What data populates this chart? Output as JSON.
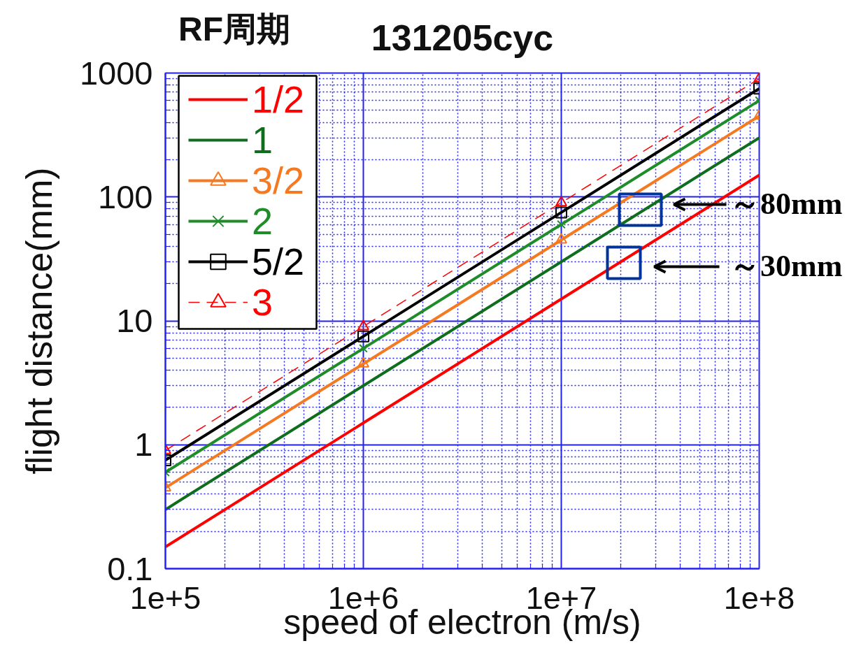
{
  "chart_data": {
    "type": "line",
    "title": "131205cyc",
    "xlabel": "speed of electron (m/s)",
    "ylabel": "flight distance(mm)",
    "legend_title": "RF周期",
    "log": "xy",
    "grid": true,
    "legend": "top left",
    "x": [
      100000,
      1000000,
      10000000,
      100000000
    ],
    "xlim": [
      100000,
      100000000
    ],
    "ylim": [
      0.1,
      1000
    ],
    "xticks": [
      {
        "value": 100000,
        "label": "1e+5"
      },
      {
        "value": 200000,
        "label": null
      },
      {
        "value": 300000,
        "label": null
      },
      {
        "value": 400000,
        "label": null
      },
      {
        "value": 500000,
        "label": null
      },
      {
        "value": 600000,
        "label": null
      },
      {
        "value": 700000,
        "label": null
      },
      {
        "value": 800000,
        "label": null
      },
      {
        "value": 900000,
        "label": null
      },
      {
        "value": 1000000,
        "label": "1e+6"
      },
      {
        "value": 2000000,
        "label": null
      },
      {
        "value": 3000000,
        "label": null
      },
      {
        "value": 4000000,
        "label": null
      },
      {
        "value": 5000000,
        "label": null
      },
      {
        "value": 6000000,
        "label": null
      },
      {
        "value": 7000000,
        "label": null
      },
      {
        "value": 8000000,
        "label": null
      },
      {
        "value": 9000000,
        "label": null
      },
      {
        "value": 10000000,
        "label": "1e+7"
      },
      {
        "value": 20000000,
        "label": null
      },
      {
        "value": 30000000,
        "label": null
      },
      {
        "value": 40000000,
        "label": null
      },
      {
        "value": 50000000,
        "label": null
      },
      {
        "value": 60000000,
        "label": null
      },
      {
        "value": 70000000,
        "label": null
      },
      {
        "value": 80000000,
        "label": null
      },
      {
        "value": 90000000,
        "label": null
      },
      {
        "value": 100000000,
        "label": "1e+8"
      }
    ],
    "yticks": [
      0.1,
      {
        "value": 0.2,
        "label": null
      },
      {
        "value": 0.3,
        "label": null
      },
      {
        "value": 0.4,
        "label": null
      },
      {
        "value": 0.5,
        "label": null
      },
      {
        "value": 0.6,
        "label": null
      },
      {
        "value": 0.7,
        "label": null
      },
      {
        "value": 0.8,
        "label": null
      },
      {
        "value": 0.9,
        "label": null
      },
      1,
      {
        "value": 2,
        "label": null
      },
      {
        "value": 3,
        "label": null
      },
      {
        "value": 4,
        "label": null
      },
      {
        "value": 5,
        "label": null
      },
      {
        "value": 6,
        "label": null
      },
      {
        "value": 7,
        "label": null
      },
      {
        "value": 8,
        "label": null
      },
      {
        "value": 9,
        "label": null
      },
      10,
      {
        "value": 20,
        "label": null
      },
      {
        "value": 30,
        "label": null
      },
      {
        "value": 40,
        "label": null
      },
      {
        "value": 50,
        "label": null
      },
      {
        "value": 60,
        "label": null
      },
      {
        "value": 70,
        "label": null
      },
      {
        "value": 80,
        "label": null
      },
      {
        "value": 90,
        "label": null
      },
      100,
      {
        "value": 200,
        "label": null
      },
      {
        "value": 300,
        "label": null
      },
      {
        "value": 400,
        "label": null
      },
      {
        "value": 500,
        "label": null
      },
      {
        "value": 600,
        "label": null
      },
      {
        "value": 700,
        "label": null
      },
      {
        "value": 800,
        "label": null
      },
      {
        "value": 900,
        "label": null
      },
      1000
    ],
    "series": [
      {
        "name": "1/2",
        "color": "#ff0000",
        "values": [
          0.15,
          1.5,
          15,
          150
        ]
      },
      {
        "name": "1",
        "color": "#0f6e1e",
        "values": [
          0.3,
          3,
          30,
          300
        ]
      },
      {
        "name": "3/2",
        "color": "#f47920",
        "marker": "triangle",
        "values": [
          0.45,
          4.5,
          45,
          450
        ]
      },
      {
        "name": "2",
        "color": "#1e8c28",
        "marker": "cross",
        "values": [
          0.6,
          6,
          60,
          600
        ]
      },
      {
        "name": "5/2",
        "color": "#000000",
        "marker": "square",
        "values": [
          0.75,
          7.5,
          75,
          750
        ]
      },
      {
        "name": "3",
        "color": "#ff0000",
        "marker": "triangle",
        "line_style": "dashed",
        "values": [
          0.9,
          9,
          90,
          900
        ]
      }
    ],
    "annotations": [
      "～80mm",
      "～30mm"
    ]
  }
}
